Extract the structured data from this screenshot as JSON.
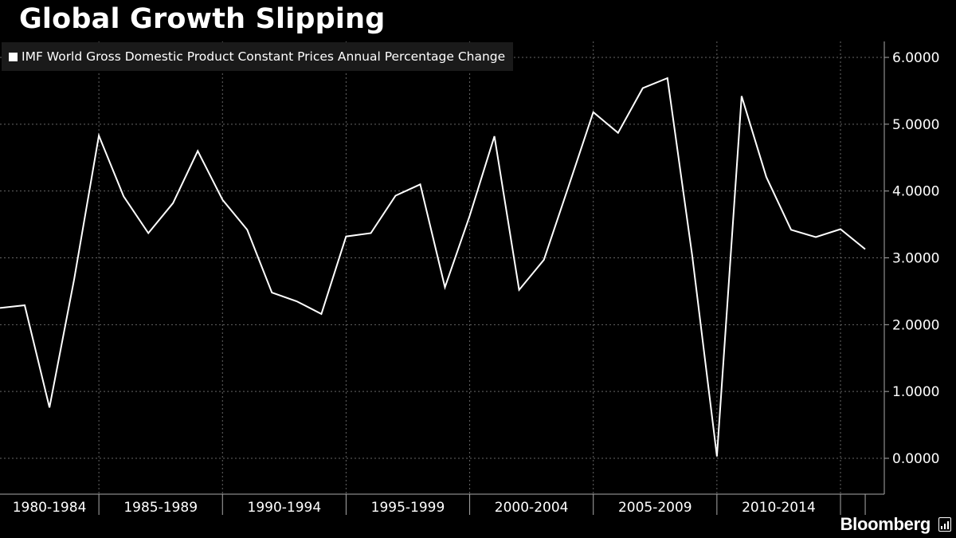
{
  "header": {
    "title": "Global Growth Slipping"
  },
  "brand": {
    "name": "Bloomberg",
    "icon": "bar-chart-icon"
  },
  "colors": {
    "background": "#000000",
    "line": "#ffffff",
    "grid": "#666666",
    "legend_bg": "#1a1a1a"
  },
  "chart_data": {
    "type": "line",
    "title": "Global Growth Slipping",
    "xlabel": "",
    "ylabel": "",
    "y_axis_side": "right",
    "ylim": [
      -0.5,
      6.2
    ],
    "y_ticks": [
      0,
      1,
      2,
      3,
      4,
      5,
      6
    ],
    "y_tick_labels": [
      "0.0000",
      "1.0000",
      "2.0000",
      "3.0000",
      "4.0000",
      "5.0000",
      "6.0000"
    ],
    "x_groups": [
      "1980-1984",
      "1985-1989",
      "1990-1994",
      "1995-1999",
      "2000-2004",
      "2005-2009",
      "2010-2014"
    ],
    "grid": true,
    "legend_position": "top-left",
    "series": [
      {
        "name": "IMF World Gross Domestic Product Constant Prices Annual Percentage Change",
        "color": "#ffffff",
        "x": [
          1980,
          1981,
          1982,
          1983,
          1984,
          1985,
          1986,
          1987,
          1988,
          1989,
          1990,
          1991,
          1992,
          1993,
          1994,
          1995,
          1996,
          1997,
          1998,
          1999,
          2000,
          2001,
          2002,
          2003,
          2004,
          2005,
          2006,
          2007,
          2008,
          2009,
          2010,
          2011,
          2012,
          2013,
          2014,
          2015
        ],
        "values": [
          2.25,
          2.29,
          0.76,
          2.68,
          4.83,
          3.92,
          3.37,
          3.82,
          4.6,
          3.87,
          3.42,
          2.48,
          2.35,
          2.16,
          3.32,
          3.37,
          3.93,
          4.1,
          2.56,
          3.63,
          4.82,
          2.52,
          2.97,
          4.07,
          5.18,
          4.87,
          5.54,
          5.69,
          3.04,
          0.03,
          5.42,
          4.21,
          3.42,
          3.31,
          3.43,
          3.13
        ]
      }
    ]
  }
}
